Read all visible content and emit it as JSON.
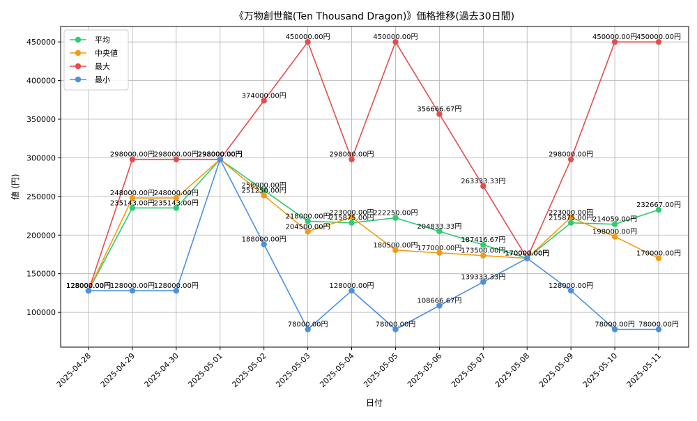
{
  "chart_data": {
    "type": "line",
    "title": "《万物創世龍(Ten Thousand Dragon)》価格推移(過去30日間)",
    "xlabel": "日付",
    "ylabel": "値 (円)",
    "ylim": [
      55000,
      470000
    ],
    "yticks": [
      100000,
      150000,
      200000,
      250000,
      300000,
      350000,
      400000,
      450000
    ],
    "grid": true,
    "legend_position": "top-left",
    "categories": [
      "2025-04-28",
      "2025-04-29",
      "2025-04-30",
      "2025-05-01",
      "2025-05-02",
      "2025-05-03",
      "2025-05-04",
      "2025-05-05",
      "2025-05-06",
      "2025-05-07",
      "2025-05-08",
      "2025-05-09",
      "2025-05-10",
      "2025-05-11"
    ],
    "series": [
      {
        "name": "平均",
        "color": "#2ecc71",
        "values": [
          128000,
          235143,
          235143,
          298000,
          258000,
          218000,
          215875,
          222250,
          204833,
          187416.67,
          170000,
          215875,
          214059,
          232667
        ],
        "labels": [
          "128000.00円",
          "235143.00円",
          "235143.00円",
          "298000.00円",
          "258000.00円",
          "218000.00円",
          "215875.00円",
          "222250.00円",
          "204833.33円",
          "187416.67円",
          "170000.00円",
          "215875.00円",
          "214059.00円",
          "232667.00円"
        ]
      },
      {
        "name": "中央値",
        "color": "#f39c12",
        "values": [
          128000,
          248000,
          248000,
          298000,
          251250,
          204500,
          223000,
          180500,
          177000,
          173500,
          170000,
          223000,
          198000,
          170000
        ],
        "labels": [
          "128000.00円",
          "248000.00円",
          "248000.00円",
          "298000.00円",
          "251250.00円",
          "204500.00円",
          "223000.00円",
          "180500.00円",
          "177000.00円",
          "173500.00円",
          "170000.00円",
          "223000.00円",
          "198000.00円",
          "170000.00円"
        ]
      },
      {
        "name": "最大",
        "color": "#e74c4c",
        "values": [
          128000,
          298000,
          298000,
          298000,
          374000,
          450000,
          298000,
          450000,
          356666.67,
          263333.33,
          170000,
          298000,
          450000,
          450000
        ],
        "labels": [
          "128000.00円",
          "298000.00円",
          "298000.00円",
          "298000.00円",
          "374000.00円",
          "450000.00円",
          "298000.00円",
          "450000.00円",
          "356666.67円",
          "263333.33円",
          "170000.00円",
          "298000.00円",
          "450000.00円",
          "450000.00円"
        ]
      },
      {
        "name": "最小",
        "color": "#4a90e2",
        "values": [
          128000,
          128000,
          128000,
          298000,
          188000,
          78000,
          128000,
          78000,
          108666.67,
          139333.33,
          170000,
          128000,
          78000,
          78000
        ],
        "labels": [
          "128000.00円",
          "128000.00円",
          "128000.00円",
          "298000.00円",
          "188000.00円",
          "78000.00円",
          "128000.00円",
          "78000.00円",
          "108666.67円",
          "139333.33円",
          "170000.00円",
          "128000.00円",
          "78000.00円",
          "78000.00円"
        ]
      }
    ]
  }
}
